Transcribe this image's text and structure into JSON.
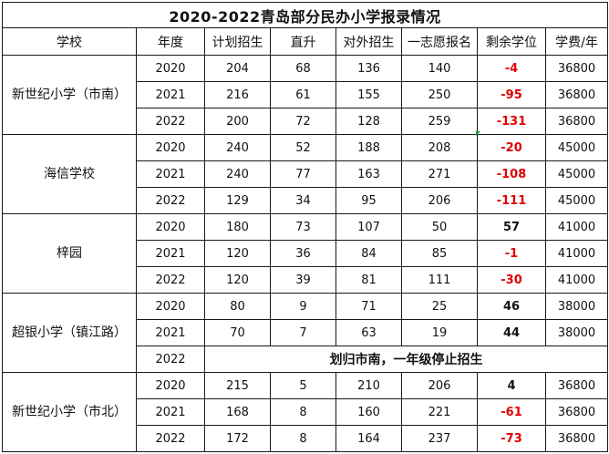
{
  "title": "2020-2022青岛部分民办小学报录情况",
  "headers": [
    "学校",
    "年度",
    "计划招生",
    "直升",
    "对外招生",
    "一志愿报名",
    "剩余学位",
    "学费/年"
  ],
  "schools": [
    {
      "name": "新世纪小学（市南）",
      "rows": [
        {
          "year": "2020",
          "plan": "204",
          "direct": "68",
          "external": "136",
          "first_choice": "140",
          "remaining": "-4",
          "tuition": "36800"
        },
        {
          "year": "2021",
          "plan": "216",
          "direct": "61",
          "external": "155",
          "first_choice": "250",
          "remaining": "-95",
          "tuition": "36800"
        },
        {
          "year": "2022",
          "plan": "200",
          "direct": "72",
          "external": "128",
          "first_choice": "259",
          "remaining": "-131",
          "tuition": "36800"
        }
      ]
    },
    {
      "name": "海信学校",
      "rows": [
        {
          "year": "2020",
          "plan": "240",
          "direct": "52",
          "external": "188",
          "first_choice": "208",
          "remaining": "-20",
          "tuition": "45000"
        },
        {
          "year": "2021",
          "plan": "240",
          "direct": "77",
          "external": "163",
          "first_choice": "271",
          "remaining": "-108",
          "tuition": "45000"
        },
        {
          "year": "2022",
          "plan": "129",
          "direct": "34",
          "external": "95",
          "first_choice": "206",
          "remaining": "-111",
          "tuition": "45000"
        }
      ]
    },
    {
      "name": "梓园",
      "rows": [
        {
          "year": "2020",
          "plan": "180",
          "direct": "73",
          "external": "107",
          "first_choice": "50",
          "remaining": "57",
          "tuition": "41000"
        },
        {
          "year": "2021",
          "plan": "120",
          "direct": "36",
          "external": "84",
          "first_choice": "85",
          "remaining": "-1",
          "tuition": "41000"
        },
        {
          "year": "2022",
          "plan": "120",
          "direct": "39",
          "external": "81",
          "first_choice": "111",
          "remaining": "-30",
          "tuition": "41000"
        }
      ]
    },
    {
      "name": "超银小学（镇江路）",
      "rows": [
        {
          "year": "2020",
          "plan": "80",
          "direct": "9",
          "external": "71",
          "first_choice": "25",
          "remaining": "46",
          "tuition": "38000"
        },
        {
          "year": "2021",
          "plan": "70",
          "direct": "7",
          "external": "63",
          "first_choice": "19",
          "remaining": "44",
          "tuition": "38000"
        }
      ],
      "note_row": {
        "year": "2022",
        "note": "划归市南，一年级停止招生"
      }
    },
    {
      "name": "新世纪小学（市北）",
      "rows": [
        {
          "year": "2020",
          "plan": "215",
          "direct": "5",
          "external": "210",
          "first_choice": "206",
          "remaining": "4",
          "tuition": "36800"
        },
        {
          "year": "2021",
          "plan": "168",
          "direct": "8",
          "external": "160",
          "first_choice": "221",
          "remaining": "-61",
          "tuition": "36800"
        },
        {
          "year": "2022",
          "plan": "172",
          "direct": "8",
          "external": "164",
          "first_choice": "237",
          "remaining": "-73",
          "tuition": "36800"
        }
      ]
    }
  ],
  "colors": {
    "negative": "#e00000",
    "positive": "#111111",
    "grid": "#1a1a1a",
    "corner_marker": "#1a9a3a"
  }
}
